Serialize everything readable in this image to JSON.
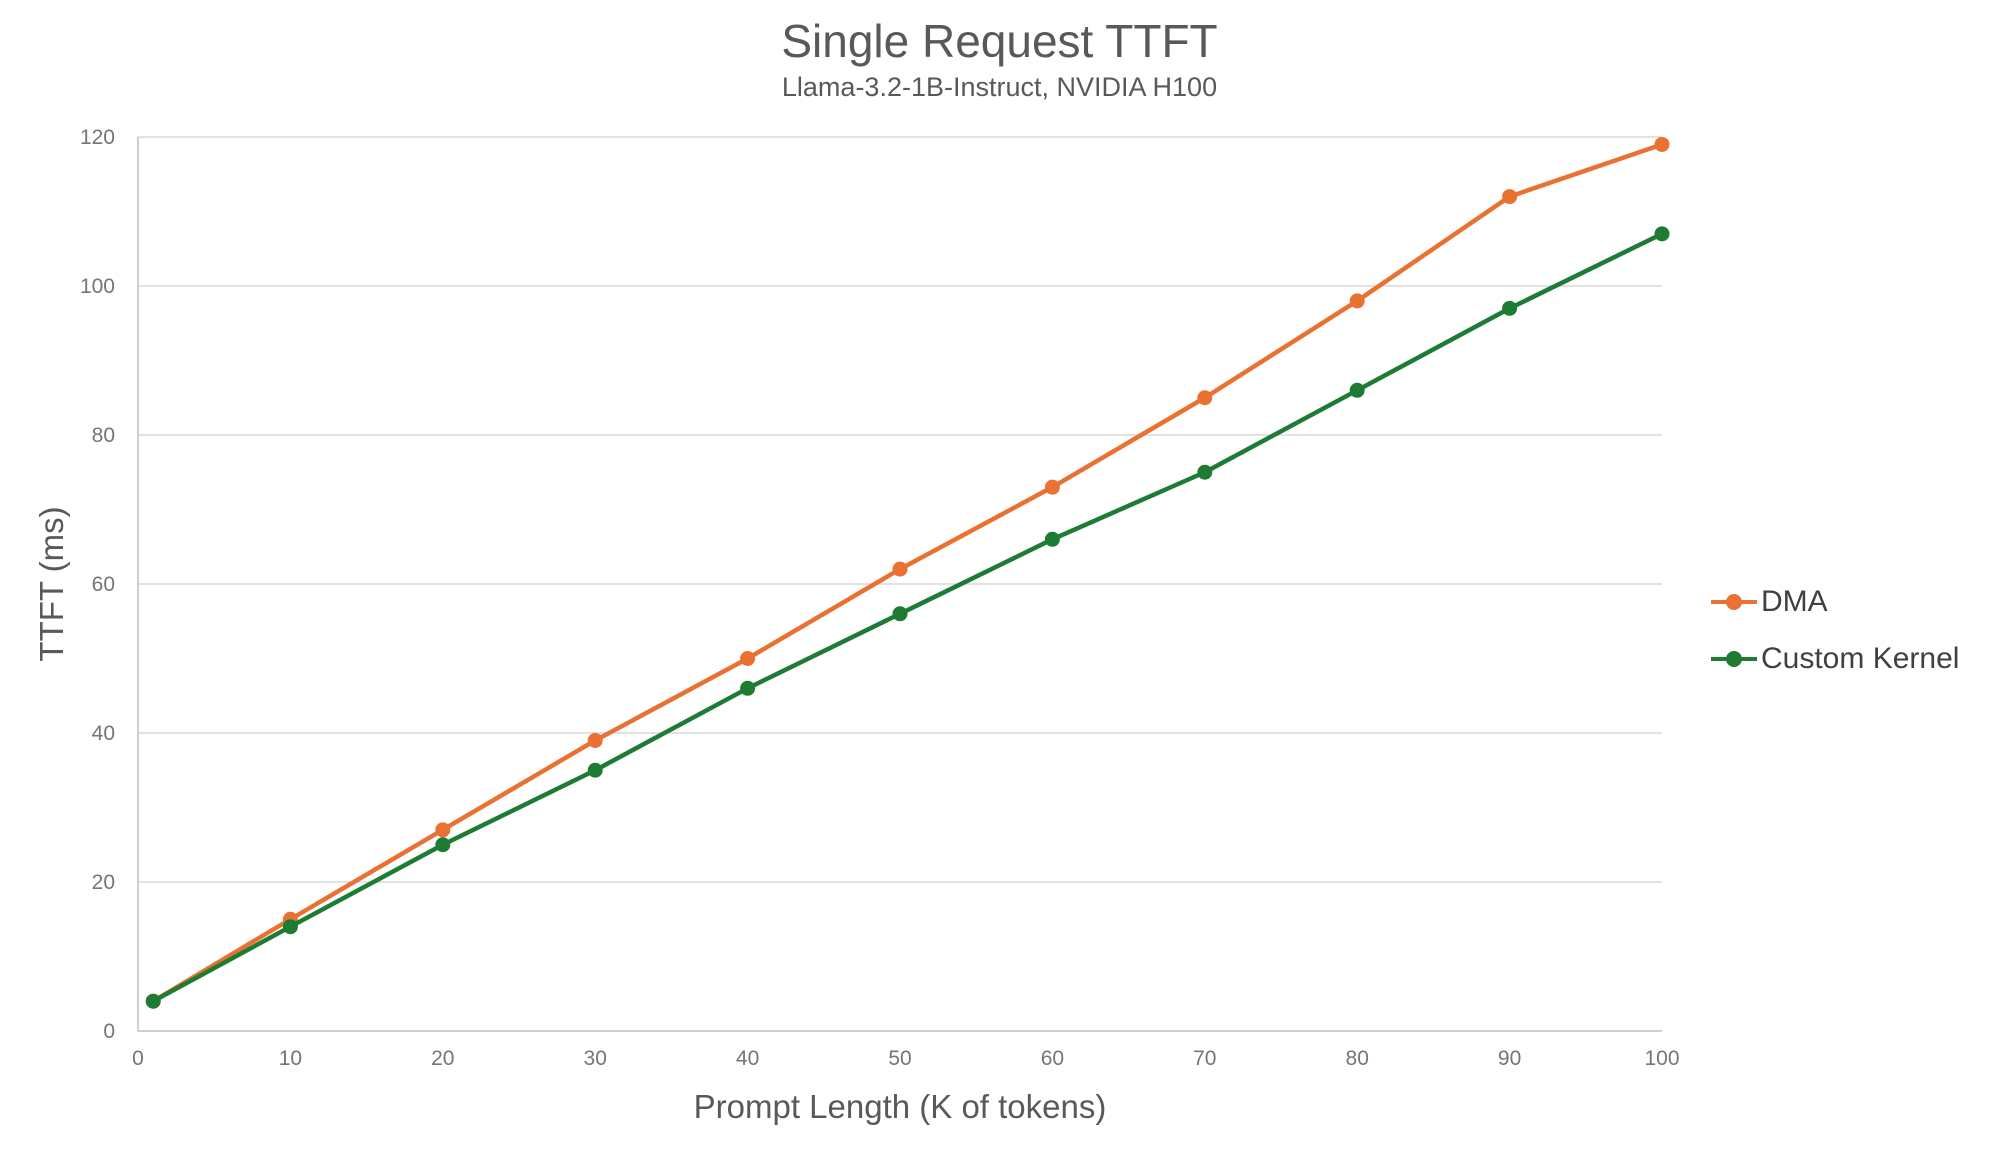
{
  "chart_data": {
    "type": "line",
    "title": "Single Request TTFT",
    "subtitle": "Llama-3.2-1B-Instruct, NVIDIA H100",
    "xlabel": "Prompt Length (K of tokens)",
    "ylabel": "TTFT (ms)",
    "x": [
      1,
      10,
      20,
      30,
      40,
      50,
      60,
      70,
      80,
      90,
      100
    ],
    "series": [
      {
        "name": "DMA",
        "color": "#E97132",
        "values": [
          4,
          15,
          27,
          39,
          50,
          62,
          73,
          85,
          98,
          112,
          119
        ]
      },
      {
        "name": "Custom Kernel",
        "color": "#1E7B34",
        "values": [
          4,
          14,
          25,
          35,
          46,
          56,
          66,
          75,
          86,
          97,
          107
        ]
      }
    ],
    "xlim": [
      0,
      100
    ],
    "ylim": [
      0,
      120
    ],
    "x_ticks": [
      0,
      10,
      20,
      30,
      40,
      50,
      60,
      70,
      80,
      90,
      100
    ],
    "y_ticks": [
      0,
      20,
      40,
      60,
      80,
      100,
      120
    ],
    "grid": "horizontal",
    "legend_position": "right",
    "colors": {
      "grid": "#D9D9D9",
      "axis": "#BFBFBF",
      "tick_text": "#757575",
      "title_text": "#595959",
      "legend_text": "#404040"
    }
  }
}
